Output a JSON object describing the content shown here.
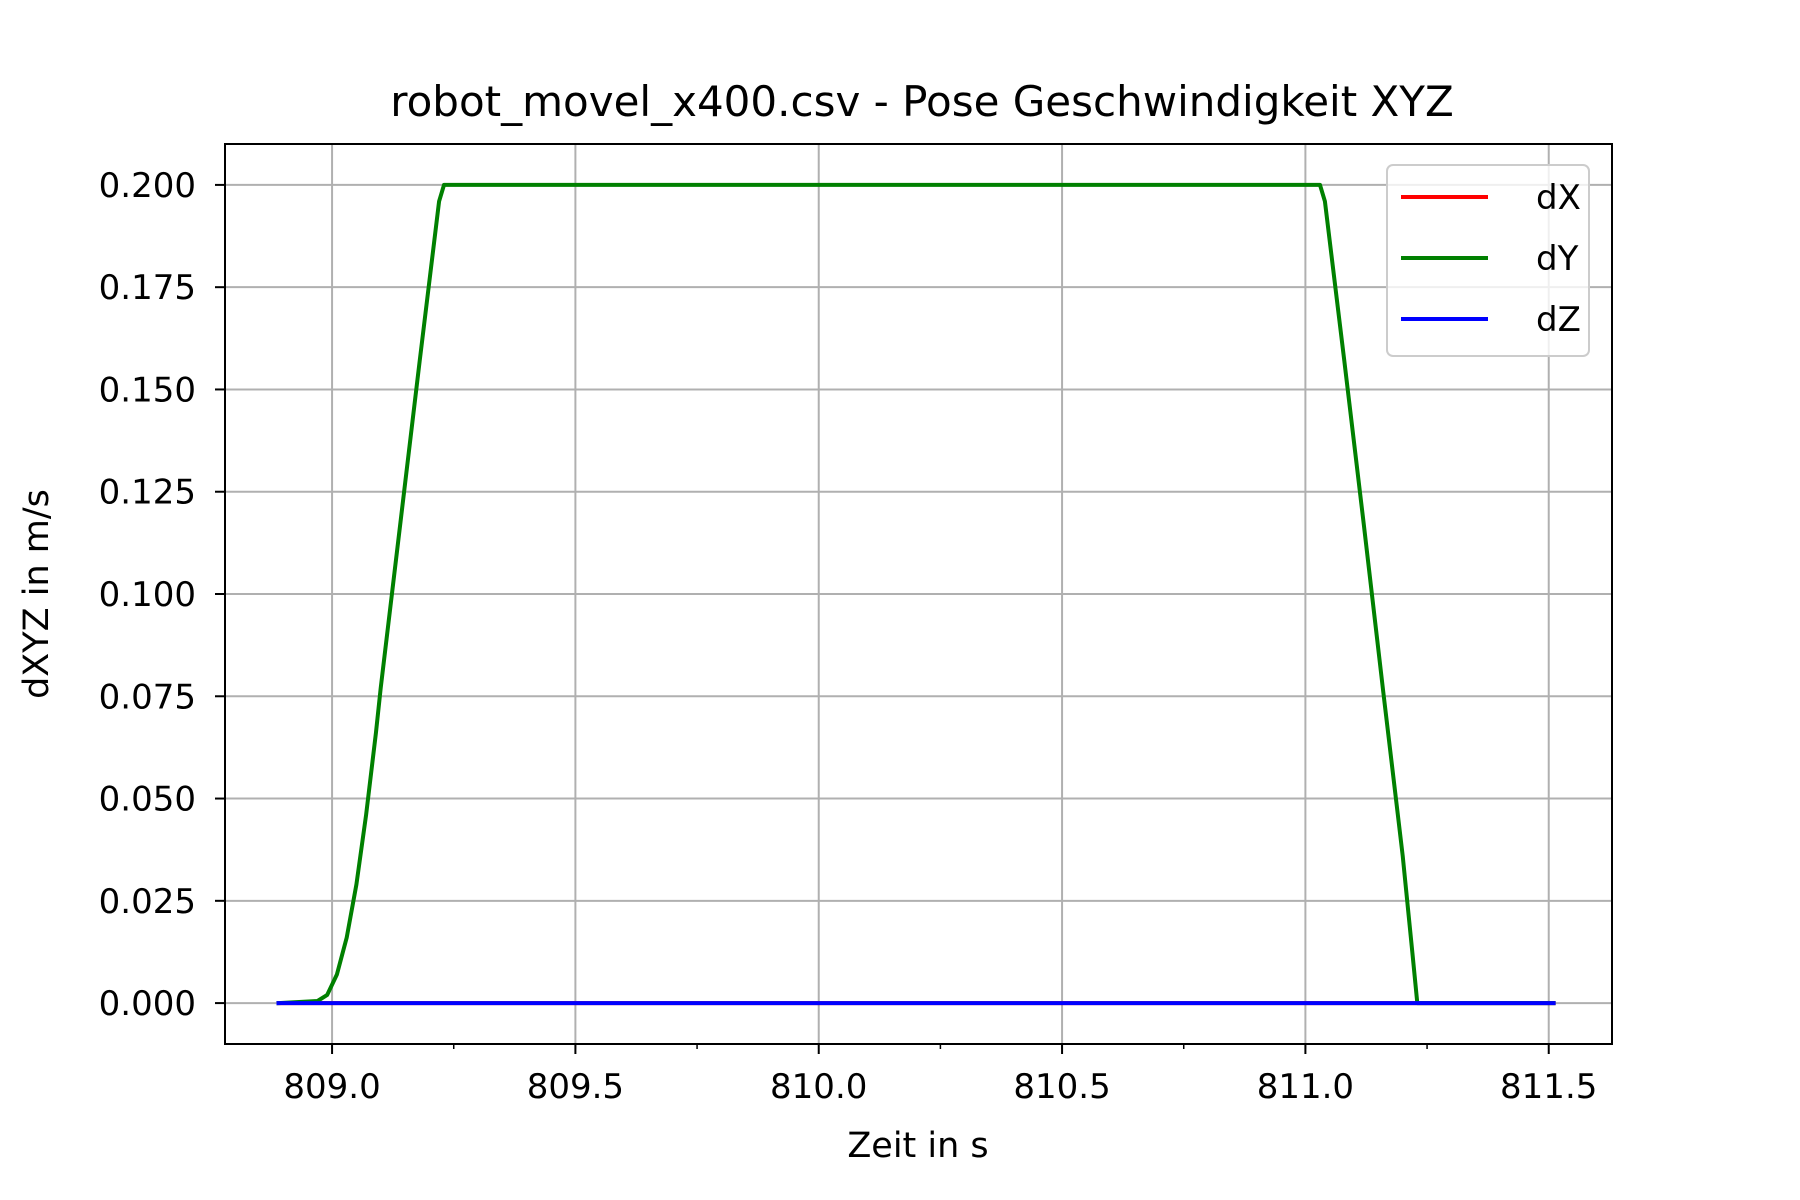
{
  "chart_data": {
    "type": "line",
    "title": "robot_movel_x400.csv - Pose Geschwindigkeit XYZ",
    "xlabel": "Zeit in s",
    "ylabel": "dXYZ in m/s",
    "xlim": [
      808.78,
      811.63
    ],
    "ylim": [
      -0.01,
      0.21
    ],
    "xticks": [
      809.0,
      809.5,
      810.0,
      810.5,
      811.0,
      811.5
    ],
    "xtick_labels": [
      "809.0",
      "809.5",
      "810.0",
      "810.5",
      "811.0",
      "811.5"
    ],
    "yticks": [
      0.0,
      0.025,
      0.05,
      0.075,
      0.1,
      0.125,
      0.15,
      0.175,
      0.2
    ],
    "ytick_labels": [
      "0.000",
      "0.025",
      "0.050",
      "0.075",
      "0.100",
      "0.125",
      "0.150",
      "0.175",
      "0.200"
    ],
    "grid": true,
    "legend_position": "top-right",
    "series": [
      {
        "name": "dX",
        "color": "#ff0000",
        "x": [
          808.89,
          811.51
        ],
        "y": [
          0.0,
          0.0
        ]
      },
      {
        "name": "dY",
        "color": "#008000",
        "x": [
          808.89,
          808.97,
          808.99,
          809.01,
          809.03,
          809.05,
          809.07,
          809.09,
          809.1,
          809.14,
          809.18,
          809.22,
          809.23,
          809.24,
          811.02,
          811.03,
          811.04,
          811.08,
          811.12,
          811.16,
          811.2,
          811.22,
          811.23,
          811.51
        ],
        "y": [
          0.0,
          0.0005,
          0.002,
          0.007,
          0.016,
          0.029,
          0.046,
          0.066,
          0.077,
          0.117,
          0.157,
          0.196,
          0.2,
          0.2,
          0.2,
          0.2,
          0.196,
          0.157,
          0.117,
          0.076,
          0.036,
          0.012,
          0.0,
          0.0
        ]
      },
      {
        "name": "dZ",
        "color": "#0000ff",
        "x": [
          808.89,
          811.51
        ],
        "y": [
          0.0,
          0.0
        ]
      }
    ]
  }
}
